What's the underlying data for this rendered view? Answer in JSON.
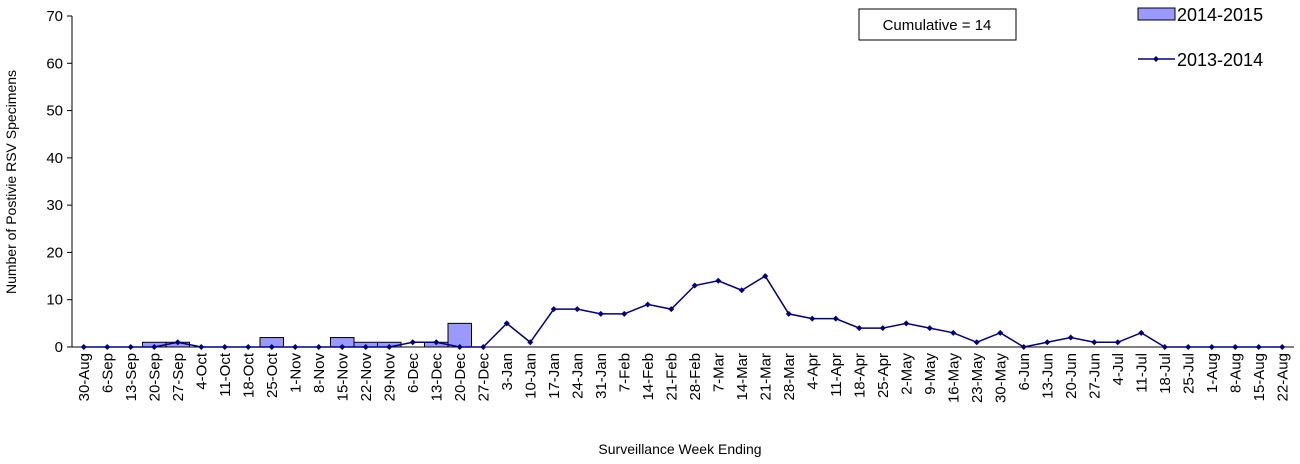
{
  "chart_data": {
    "type": "bar_line",
    "y_label": "Number of Postivie RSV Specimens",
    "x_label": "Surveillance Week Ending",
    "annotation": "Cumulative = 14",
    "categories": [
      "30-Aug",
      "6-Sep",
      "13-Sep",
      "20-Sep",
      "27-Sep",
      "4-Oct",
      "11-Oct",
      "18-Oct",
      "25-Oct",
      "1-Nov",
      "8-Nov",
      "15-Nov",
      "22-Nov",
      "29-Nov",
      "6-Dec",
      "13-Dec",
      "20-Dec",
      "27-Dec",
      "3-Jan",
      "10-Jan",
      "17-Jan",
      "24-Jan",
      "31-Jan",
      "7-Feb",
      "14-Feb",
      "21-Feb",
      "28-Feb",
      "7-Mar",
      "14-Mar",
      "21-Mar",
      "28-Mar",
      "4-Apr",
      "11-Apr",
      "18-Apr",
      "25-Apr",
      "2-May",
      "9-May",
      "16-May",
      "23-May",
      "30-May",
      "6-Jun",
      "13-Jun",
      "20-Jun",
      "27-Jun",
      "4-Jul",
      "11-Jul",
      "18-Jul",
      "25-Jul",
      "1-Aug",
      "8-Aug",
      "15-Aug",
      "22-Aug"
    ],
    "series": [
      {
        "name": "2014-2015",
        "kind": "bar",
        "color": "#9999ff",
        "values": [
          0,
          0,
          0,
          1,
          1,
          0,
          0,
          0,
          2,
          0,
          0,
          2,
          1,
          1,
          0,
          1,
          5,
          null,
          null,
          null,
          null,
          null,
          null,
          null,
          null,
          null,
          null,
          null,
          null,
          null,
          null,
          null,
          null,
          null,
          null,
          null,
          null,
          null,
          null,
          null,
          null,
          null,
          null,
          null,
          null,
          null,
          null,
          null,
          null,
          null,
          null,
          null
        ]
      },
      {
        "name": "2013-2014",
        "kind": "line",
        "color": "#000080",
        "values": [
          0,
          0,
          0,
          0,
          1,
          0,
          0,
          0,
          0,
          0,
          0,
          0,
          0,
          0,
          1,
          1,
          0,
          0,
          5,
          1,
          8,
          8,
          7,
          7,
          9,
          8,
          13,
          14,
          12,
          15,
          7,
          6,
          6,
          4,
          4,
          5,
          4,
          3,
          1,
          3,
          0,
          1,
          2,
          1,
          1,
          3,
          0,
          0,
          0,
          0,
          0,
          0
        ]
      }
    ],
    "ylim": [
      0,
      70
    ],
    "yticks": [
      0,
      10,
      20,
      30,
      40,
      50,
      60,
      70
    ]
  }
}
